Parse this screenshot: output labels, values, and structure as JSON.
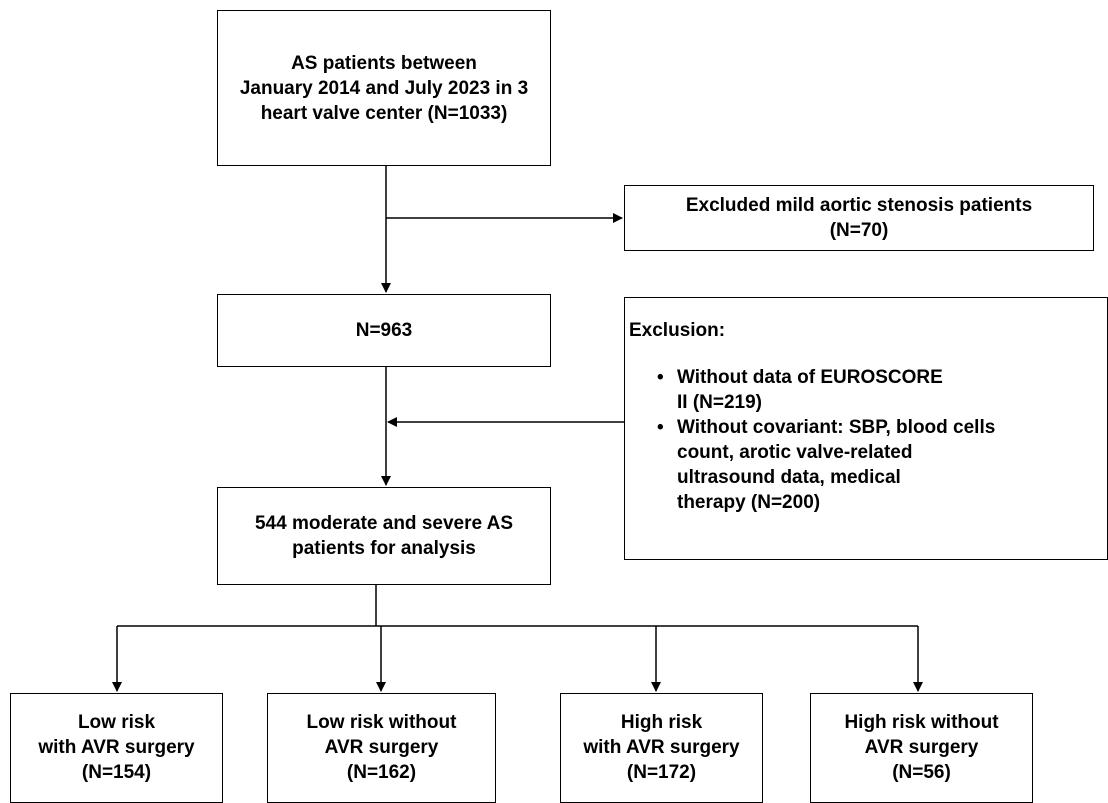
{
  "start_box": {
    "lines": [
      "AS patients between",
      "January 2014 and July 2023 in 3",
      "heart valve center (N=1033)"
    ]
  },
  "excluded_mild_box": {
    "lines": [
      "Excluded mild aortic stenosis patients",
      "(N=70)"
    ]
  },
  "n963_box": {
    "text": "N=963"
  },
  "exclusion_box": {
    "title": "Exclusion:",
    "items": [
      {
        "lines": [
          "Without data of  EUROSCORE",
          "II (N=219)"
        ]
      },
      {
        "lines": [
          "Without covariant: SBP, blood cells",
          "count, arotic valve-related",
          "ultrasound data, medical",
          "therapy (N=200)"
        ]
      }
    ]
  },
  "analysis_box": {
    "lines": [
      "544 moderate and severe AS",
      "patients for analysis"
    ]
  },
  "groups": [
    {
      "lines": [
        "Low risk",
        "with AVR surgery",
        "(N=154)"
      ]
    },
    {
      "lines": [
        "Low risk without",
        "AVR surgery",
        "(N=162)"
      ]
    },
    {
      "lines": [
        "High risk",
        "with AVR surgery",
        "(N=172)"
      ]
    },
    {
      "lines": [
        "High risk without",
        "AVR surgery",
        "(N=56)"
      ]
    }
  ]
}
